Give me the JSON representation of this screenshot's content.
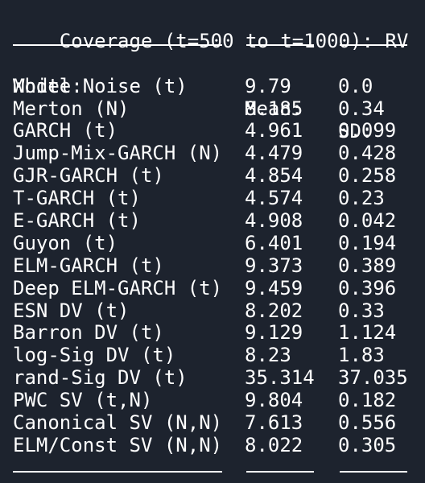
{
  "header": {
    "title": "Coverage (t=500 to t=1000): RV"
  },
  "table": {
    "columns": {
      "model": "Model:",
      "mean": "Mean:",
      "sd": "SD:"
    },
    "rows": [
      {
        "model": "White Noise (t)",
        "mean": "9.79",
        "sd": "0.0"
      },
      {
        "model": "Merton (N)",
        "mean": "8.185",
        "sd": "0.34"
      },
      {
        "model": "GARCH (t)",
        "mean": "4.961",
        "sd": "0.099"
      },
      {
        "model": "Jump-Mix-GARCH (N)",
        "mean": "4.479",
        "sd": "0.428"
      },
      {
        "model": "GJR-GARCH (t)",
        "mean": "4.854",
        "sd": "0.258"
      },
      {
        "model": "T-GARCH (t)",
        "mean": "4.574",
        "sd": "0.23"
      },
      {
        "model": "E-GARCH (t)",
        "mean": "4.908",
        "sd": "0.042"
      },
      {
        "model": "Guyon (t)",
        "mean": "6.401",
        "sd": "0.194"
      },
      {
        "model": "ELM-GARCH (t)",
        "mean": "9.373",
        "sd": "0.389"
      },
      {
        "model": "Deep ELM-GARCH (t)",
        "mean": "9.459",
        "sd": "0.396"
      },
      {
        "model": "ESN DV (t)",
        "mean": "8.202",
        "sd": "0.33"
      },
      {
        "model": "Barron DV (t)",
        "mean": "9.129",
        "sd": "1.124"
      },
      {
        "model": "log-Sig DV (t)",
        "mean": "8.23",
        "sd": "1.83"
      },
      {
        "model": "rand-Sig DV (t)",
        "mean": "35.314",
        "sd": "37.035"
      },
      {
        "model": "PWC SV (t,N)",
        "mean": "9.804",
        "sd": "0.182"
      },
      {
        "model": "Canonical SV (N,N)",
        "mean": "7.613",
        "sd": "0.556"
      },
      {
        "model": "ELM/Const SV (N,N)",
        "mean": "8.022",
        "sd": "0.305"
      }
    ]
  }
}
